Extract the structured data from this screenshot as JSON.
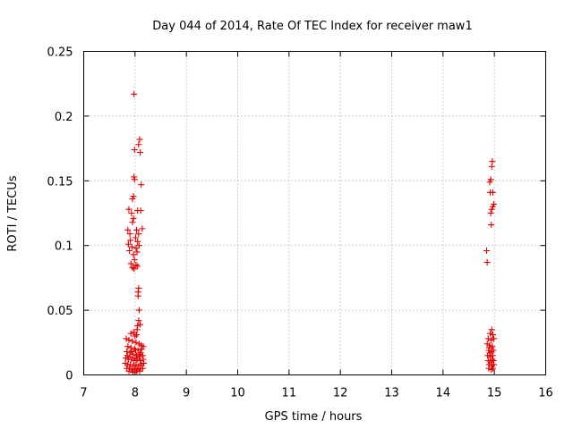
{
  "chart_data": {
    "type": "scatter",
    "title": "Day 044 of 2014, Rate Of TEC Index for receiver maw1",
    "xlabel": "GPS time / hours",
    "ylabel": "ROTI / TECUs",
    "xlim": [
      7,
      16
    ],
    "ylim": [
      0,
      0.25
    ],
    "xticks": [
      7,
      8,
      9,
      10,
      11,
      12,
      13,
      14,
      15,
      16
    ],
    "xtick_labels": [
      "7",
      "8",
      "9",
      "10",
      "11",
      "12",
      "13",
      "14",
      "15",
      "16"
    ],
    "yticks": [
      0,
      0.05,
      0.1,
      0.15,
      0.2,
      0.25
    ],
    "ytick_labels": [
      "0",
      "0.05",
      "0.1",
      "0.15",
      "0.2",
      "0.25"
    ],
    "grid": true,
    "marker": "+",
    "color": "#e00000",
    "series": [
      {
        "name": "ROTI",
        "points": [
          [
            7.98,
            0.217
          ],
          [
            8.09,
            0.182
          ],
          [
            8.07,
            0.178
          ],
          [
            8.1,
            0.172
          ],
          [
            7.99,
            0.174
          ],
          [
            8.12,
            0.147
          ],
          [
            7.98,
            0.153
          ],
          [
            7.99,
            0.151
          ],
          [
            7.97,
            0.138
          ],
          [
            7.95,
            0.136
          ],
          [
            8.05,
            0.127
          ],
          [
            8.11,
            0.127
          ],
          [
            7.88,
            0.128
          ],
          [
            7.93,
            0.125
          ],
          [
            7.97,
            0.121
          ],
          [
            7.95,
            0.118
          ],
          [
            7.86,
            0.112
          ],
          [
            7.9,
            0.109
          ],
          [
            8.03,
            0.112
          ],
          [
            8.07,
            0.109
          ],
          [
            8.14,
            0.113
          ],
          [
            7.91,
            0.104
          ],
          [
            8.01,
            0.106
          ],
          [
            8.05,
            0.103
          ],
          [
            7.87,
            0.101
          ],
          [
            7.94,
            0.099
          ],
          [
            8.02,
            0.098
          ],
          [
            8.08,
            0.1
          ],
          [
            7.89,
            0.096
          ],
          [
            7.97,
            0.093
          ],
          [
            8.04,
            0.095
          ],
          [
            7.99,
            0.089
          ],
          [
            7.92,
            0.086
          ],
          [
            7.95,
            0.083
          ],
          [
            7.98,
            0.082
          ],
          [
            8.02,
            0.085
          ],
          [
            8.05,
            0.084
          ],
          [
            8.07,
            0.067
          ],
          [
            8.06,
            0.064
          ],
          [
            8.06,
            0.061
          ],
          [
            8.08,
            0.05
          ],
          [
            8.07,
            0.042
          ],
          [
            8.05,
            0.038
          ],
          [
            8.1,
            0.039
          ],
          [
            8.04,
            0.035
          ],
          [
            7.92,
            0.032
          ],
          [
            7.97,
            0.033
          ],
          [
            8.0,
            0.03
          ],
          [
            8.03,
            0.031
          ],
          [
            7.83,
            0.028
          ],
          [
            7.88,
            0.027
          ],
          [
            7.95,
            0.026
          ],
          [
            8.02,
            0.025
          ],
          [
            8.08,
            0.024
          ],
          [
            8.12,
            0.023
          ],
          [
            7.86,
            0.022
          ],
          [
            7.92,
            0.021
          ],
          [
            7.99,
            0.02
          ],
          [
            8.06,
            0.019
          ],
          [
            8.13,
            0.02
          ],
          [
            8.16,
            0.022
          ],
          [
            7.84,
            0.018
          ],
          [
            7.9,
            0.017
          ],
          [
            7.96,
            0.016
          ],
          [
            8.03,
            0.015
          ],
          [
            8.09,
            0.016
          ],
          [
            8.15,
            0.015
          ],
          [
            7.82,
            0.013
          ],
          [
            7.87,
            0.012
          ],
          [
            7.93,
            0.012
          ],
          [
            7.98,
            0.011
          ],
          [
            8.04,
            0.012
          ],
          [
            8.1,
            0.011
          ],
          [
            8.16,
            0.012
          ],
          [
            7.81,
            0.009
          ],
          [
            7.86,
            0.008
          ],
          [
            7.91,
            0.008
          ],
          [
            7.97,
            0.007
          ],
          [
            8.02,
            0.008
          ],
          [
            8.07,
            0.007
          ],
          [
            8.12,
            0.008
          ],
          [
            8.17,
            0.009
          ],
          [
            7.84,
            0.005
          ],
          [
            7.89,
            0.005
          ],
          [
            7.94,
            0.004
          ],
          [
            8.0,
            0.005
          ],
          [
            8.05,
            0.004
          ],
          [
            8.11,
            0.005
          ],
          [
            8.15,
            0.005
          ],
          [
            7.88,
            0.003
          ],
          [
            7.96,
            0.002
          ],
          [
            8.03,
            0.003
          ],
          [
            8.09,
            0.003
          ],
          [
            7.9,
            0.014
          ],
          [
            8.0,
            0.013
          ],
          [
            8.08,
            0.014
          ],
          [
            7.93,
            0.018
          ],
          [
            8.01,
            0.019
          ],
          [
            8.11,
            0.017
          ],
          [
            7.85,
            0.015
          ],
          [
            14.96,
            0.165
          ],
          [
            14.95,
            0.161
          ],
          [
            14.93,
            0.151
          ],
          [
            14.91,
            0.149
          ],
          [
            14.92,
            0.141
          ],
          [
            14.97,
            0.141
          ],
          [
            14.99,
            0.132
          ],
          [
            14.97,
            0.13
          ],
          [
            14.95,
            0.128
          ],
          [
            14.93,
            0.125
          ],
          [
            14.94,
            0.116
          ],
          [
            14.85,
            0.096
          ],
          [
            14.86,
            0.087
          ],
          [
            14.95,
            0.035
          ],
          [
            14.92,
            0.032
          ],
          [
            14.97,
            0.031
          ],
          [
            14.88,
            0.028
          ],
          [
            14.94,
            0.027
          ],
          [
            14.99,
            0.028
          ],
          [
            14.86,
            0.024
          ],
          [
            14.91,
            0.023
          ],
          [
            14.96,
            0.022
          ],
          [
            14.89,
            0.019
          ],
          [
            14.94,
            0.018
          ],
          [
            14.98,
            0.019
          ],
          [
            14.87,
            0.015
          ],
          [
            14.92,
            0.014
          ],
          [
            14.97,
            0.015
          ],
          [
            14.88,
            0.011
          ],
          [
            14.93,
            0.01
          ],
          [
            14.98,
            0.011
          ],
          [
            14.9,
            0.008
          ],
          [
            14.95,
            0.007
          ],
          [
            14.99,
            0.008
          ],
          [
            14.89,
            0.005
          ],
          [
            14.94,
            0.004
          ],
          [
            14.97,
            0.005
          ],
          [
            14.91,
            0.017
          ],
          [
            14.96,
            0.012
          ],
          [
            14.9,
            0.021
          ]
        ]
      }
    ]
  }
}
